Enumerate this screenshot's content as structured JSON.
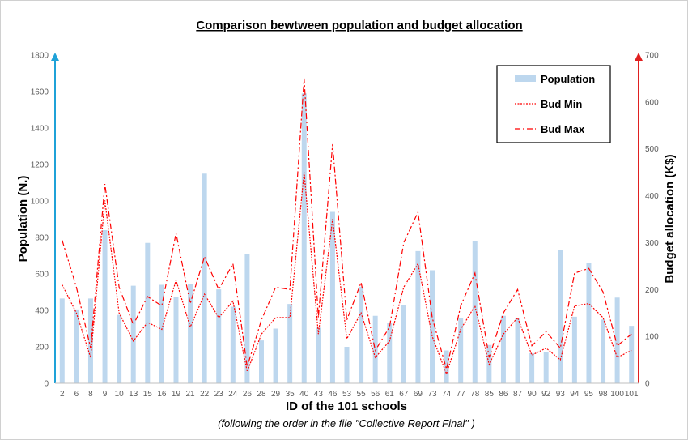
{
  "chart_data": {
    "type": "bar",
    "title": "Comparison bewtween population and budget allocation",
    "xlabel": "ID of the  101 schools",
    "xsubtitle": "(following the order in the file \"Collective Report Final\" )",
    "ylabel": "Population (N.)",
    "y2label": "Budget allocation (K$)",
    "ylim": [
      0,
      1800
    ],
    "y2lim": [
      0,
      700
    ],
    "yticks": [
      "0",
      "200",
      "400",
      "600",
      "800",
      "1000",
      "1200",
      "1400",
      "1600",
      "1800"
    ],
    "y2ticks": [
      "0",
      "100",
      "200",
      "300",
      "400",
      "500",
      "600",
      "700"
    ],
    "grid": false,
    "legend_position": "top-right",
    "categories": [
      "2",
      "6",
      "8",
      "9",
      "10",
      "13",
      "15",
      "16",
      "19",
      "21",
      "22",
      "23",
      "24",
      "26",
      "28",
      "29",
      "35",
      "40",
      "43",
      "46",
      "53",
      "55",
      "56",
      "61",
      "67",
      "69",
      "73",
      "74",
      "77",
      "78",
      "85",
      "86",
      "87",
      "90",
      "92",
      "93",
      "94",
      "95",
      "98",
      "100",
      "101"
    ],
    "series": [
      {
        "name": "Population",
        "axis": "left",
        "kind": "bar",
        "color": "#bdd7ee",
        "values": [
          465,
          405,
          465,
          840,
          375,
          535,
          770,
          540,
          475,
          545,
          1150,
          515,
          420,
          710,
          235,
          300,
          435,
          1590,
          305,
          940,
          200,
          530,
          370,
          330,
          430,
          725,
          620,
          180,
          360,
          780,
          210,
          370,
          355,
          165,
          170,
          730,
          365,
          660,
          350,
          470,
          315
        ]
      },
      {
        "name": "Bud Min",
        "axis": "right",
        "kind": "line",
        "dash": "dotted",
        "color": "#ff0000",
        "values": [
          210,
          150,
          55,
          390,
          150,
          90,
          130,
          115,
          220,
          120,
          190,
          140,
          175,
          25,
          105,
          140,
          140,
          450,
          105,
          350,
          95,
          150,
          55,
          90,
          205,
          255,
          100,
          20,
          115,
          165,
          40,
          105,
          140,
          60,
          75,
          50,
          165,
          170,
          140,
          55,
          70
        ]
      },
      {
        "name": "Bud Max",
        "axis": "right",
        "kind": "line",
        "dash": "dash-dot",
        "color": "#ff0000",
        "values": [
          305,
          205,
          75,
          425,
          205,
          125,
          185,
          165,
          320,
          170,
          270,
          200,
          255,
          35,
          135,
          205,
          200,
          650,
          140,
          510,
          135,
          215,
          70,
          120,
          300,
          365,
          140,
          30,
          165,
          235,
          55,
          150,
          200,
          80,
          110,
          75,
          235,
          245,
          195,
          80,
          105
        ]
      }
    ]
  },
  "legend": {
    "population": "Population",
    "bud_min": "Bud Min",
    "bud_max": "Bud Max"
  },
  "colors": {
    "left_axis": "#1fa2d8",
    "right_axis": "#e02020",
    "bar": "#bdd7ee",
    "line": "#ff0000"
  }
}
